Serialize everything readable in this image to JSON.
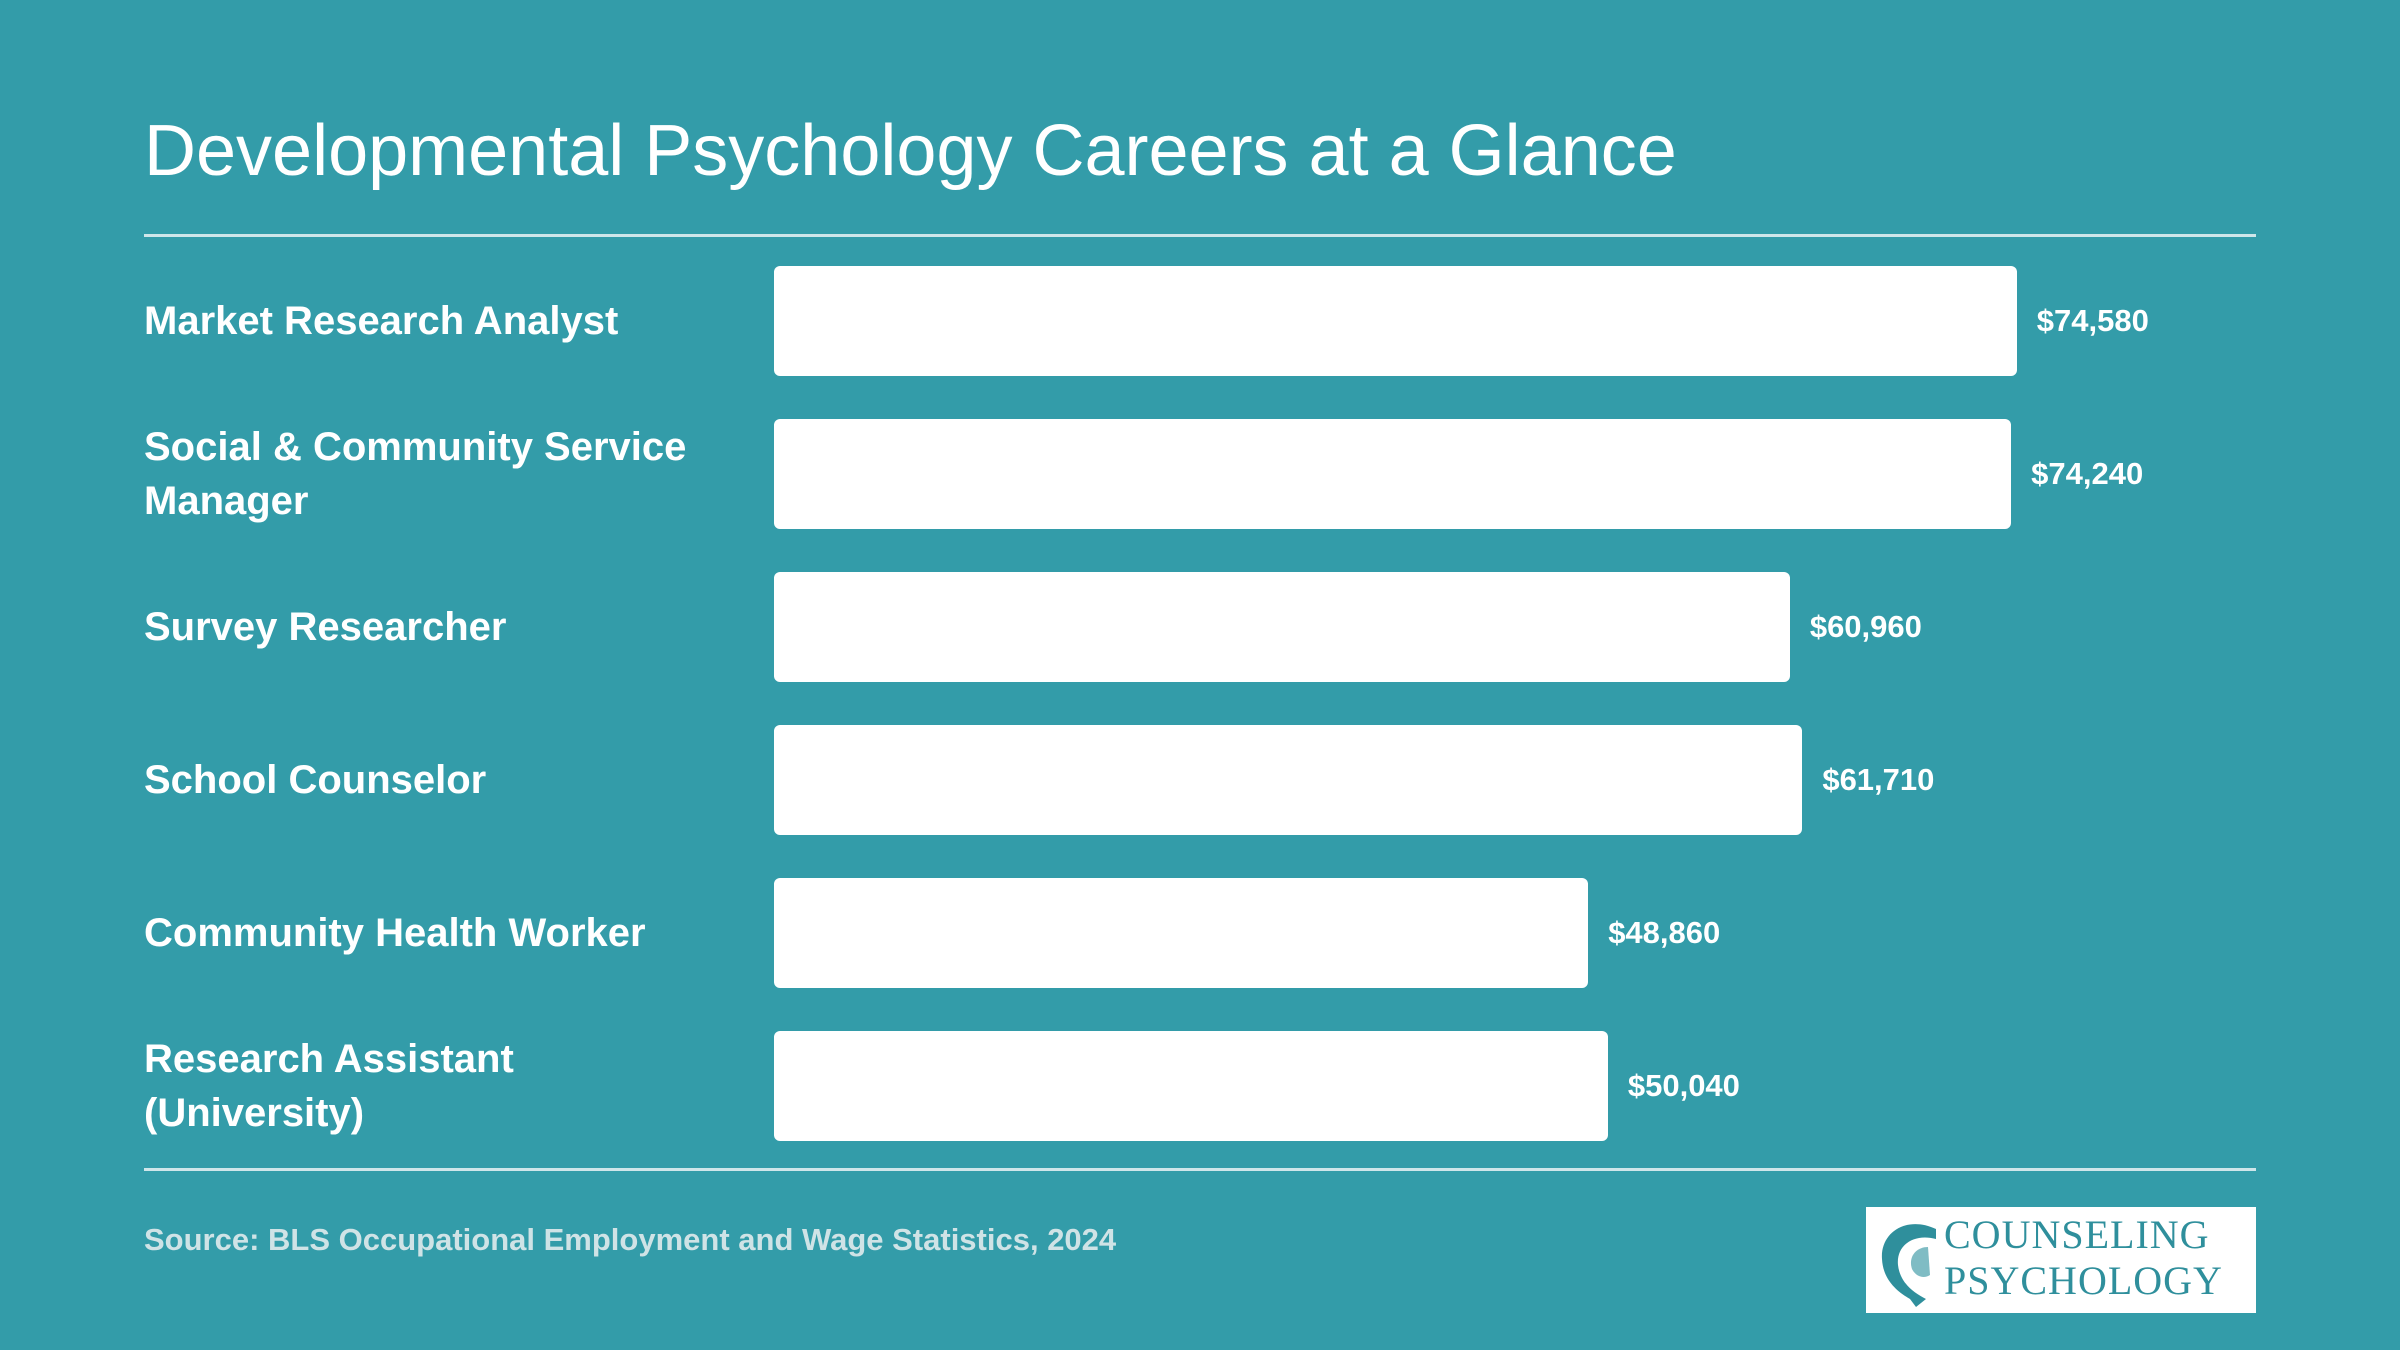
{
  "chart_data": {
    "type": "bar",
    "orientation": "horizontal",
    "title": "Developmental Psychology Careers at a Glance",
    "categories": [
      "Market Research Analyst",
      "Social & Community Service Manager",
      "Survey Researcher",
      "School Counselor",
      "Community Health Worker",
      "Research Assistant (University)"
    ],
    "values": [
      74580,
      74240,
      60960,
      61710,
      48860,
      50040
    ],
    "value_labels": [
      "$74,580",
      "$74,240",
      "$60,960",
      "$61,710",
      "$48,860",
      "$50,040"
    ],
    "color": "#ffffff",
    "source": "Source: BLS Occupational Employment and Wage Statistics, 2024"
  },
  "logo": {
    "lines": [
      "COUNSELING",
      "PSYCHOLOGY"
    ]
  }
}
